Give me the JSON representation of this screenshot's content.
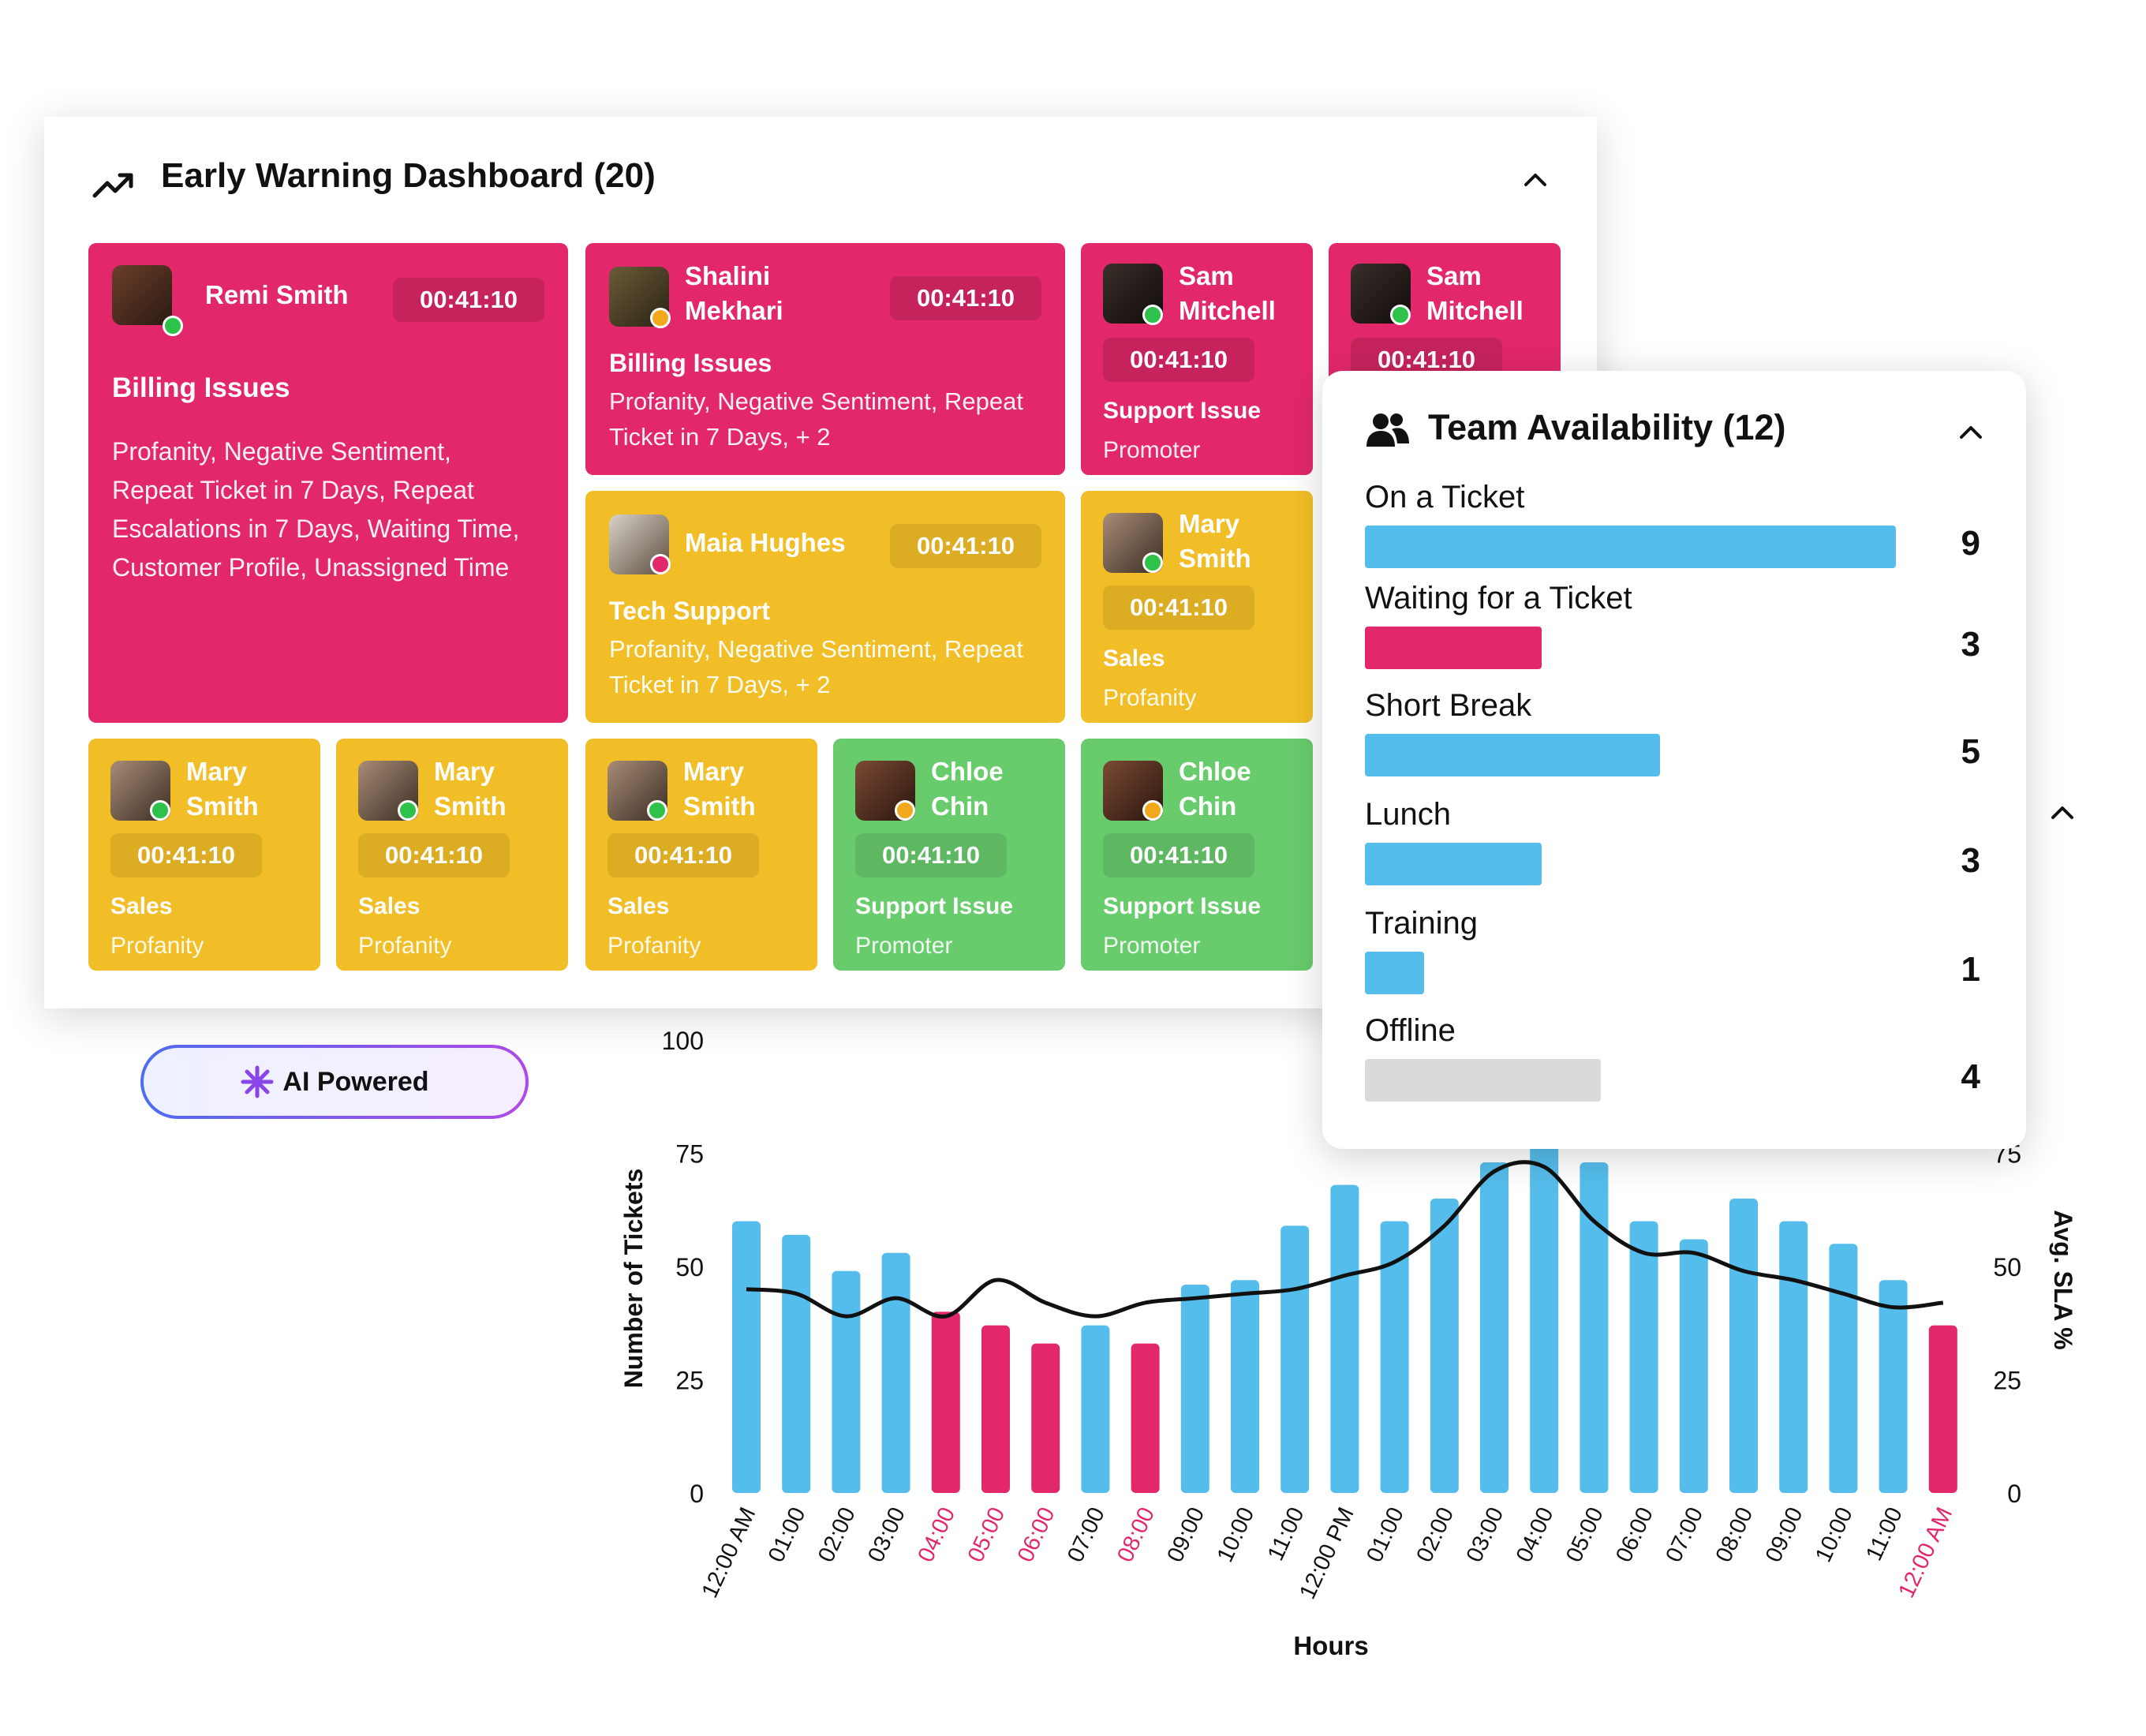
{
  "early_warning": {
    "title": "Early Warning Dashboard (20)",
    "cards": [
      {
        "name": "Remi Smith",
        "timer": "00:41:10",
        "category": "Billing Issues",
        "tags": "Profanity, Negative Sentiment, Repeat Ticket in 7 Days, Repeat Escalations in 7 Days, Waiting Time, Customer Profile, Unassigned Time",
        "status": "online",
        "color": "pink"
      },
      {
        "name": "Shalini Mekhari",
        "timer": "00:41:10",
        "category": "Billing Issues",
        "tags": "Profanity, Negative Sentiment, Repeat Ticket in 7 Days, + 2",
        "status": "away",
        "color": "pink"
      },
      {
        "name": "Sam Mitchell",
        "timer": "00:41:10",
        "category": "Support Issue",
        "tags": "Promoter",
        "status": "online",
        "color": "pink"
      },
      {
        "name": "Sam Mitchell",
        "timer": "00:41:10",
        "category": "",
        "tags": "",
        "status": "online",
        "color": "pink"
      },
      {
        "name": "Maia Hughes",
        "timer": "00:41:10",
        "category": "Tech Support",
        "tags": "Profanity, Negative Sentiment, Repeat Ticket in 7 Days, + 2",
        "status": "busy",
        "color": "yellow"
      },
      {
        "name": "Mary Smith",
        "timer": "00:41:10",
        "category": "Sales",
        "tags": "Profanity",
        "status": "online",
        "color": "yellow"
      },
      {
        "name": "Mary Smith",
        "timer": "00:41:10",
        "category": "Sales",
        "tags": "Profanity",
        "status": "online",
        "color": "yellow"
      },
      {
        "name": "Mary Smith",
        "timer": "00:41:10",
        "category": "Sales",
        "tags": "Profanity",
        "status": "online",
        "color": "yellow"
      },
      {
        "name": "Mary Smith",
        "timer": "00:41:10",
        "category": "Sales",
        "tags": "Profanity",
        "status": "online",
        "color": "yellow"
      },
      {
        "name": "Chloe Chin",
        "timer": "00:41:10",
        "category": "Support Issue",
        "tags": "Promoter",
        "status": "away",
        "color": "green"
      },
      {
        "name": "Chloe Chin",
        "timer": "00:41:10",
        "category": "Support Issue",
        "tags": "Promoter",
        "status": "away",
        "color": "green"
      }
    ]
  },
  "ai_badge": {
    "label": "AI Powered"
  },
  "team_availability": {
    "title": "Team Availability (12)",
    "total": 12,
    "items": [
      {
        "label": "On a Ticket",
        "count": 9,
        "color": "#55BDEB"
      },
      {
        "label": "Waiting for a Ticket",
        "count": 3,
        "color": "#E2286A"
      },
      {
        "label": "Short Break",
        "count": 5,
        "color": "#55BDEB"
      },
      {
        "label": "Lunch",
        "count": 3,
        "color": "#55BDEB"
      },
      {
        "label": "Training",
        "count": 1,
        "color": "#55BDEB"
      },
      {
        "label": "Offline",
        "count": 4,
        "color": "#DADADA"
      }
    ]
  },
  "colors": {
    "pink": "#E2286A",
    "yellow": "#F2BE27",
    "green": "#68CB6C",
    "blue": "#55BDEB",
    "online": "#2EC24A",
    "away": "#F2A81D",
    "busy": "#E2286A"
  },
  "chart_data": {
    "type": "bar",
    "xlabel": "Hours",
    "ylabel": "Number of Tickets",
    "y2label": "Avg. SLA %",
    "ylim": [
      0,
      100
    ],
    "yticks": [
      0,
      25,
      50,
      75,
      100
    ],
    "y2ticks": [
      0,
      25,
      50,
      75
    ],
    "categories": [
      "12:00 AM",
      "01:00",
      "02:00",
      "03:00",
      "04:00",
      "05:00",
      "06:00",
      "07:00",
      "08:00",
      "09:00",
      "10:00",
      "11:00",
      "12:00 PM",
      "01:00",
      "02:00",
      "03:00",
      "04:00",
      "05:00",
      "06:00",
      "07:00",
      "08:00",
      "09:00",
      "10:00",
      "11:00",
      "12:00 AM"
    ],
    "series": [
      {
        "values": [
          60,
          57,
          49,
          53,
          40,
          37,
          33,
          37,
          33,
          46,
          47,
          59,
          68,
          60,
          65,
          73,
          86,
          73,
          60,
          56,
          65,
          60,
          55,
          47,
          37
        ]
      },
      {
        "values": [
          45,
          44,
          39,
          43,
          39,
          47,
          42,
          39,
          42,
          43,
          44,
          45,
          48,
          51,
          59,
          71,
          72,
          60,
          53,
          53,
          49,
          47,
          44,
          41,
          42
        ]
      }
    ],
    "highlight": [
      false,
      false,
      false,
      false,
      true,
      true,
      true,
      false,
      true,
      false,
      false,
      false,
      false,
      false,
      false,
      false,
      false,
      false,
      false,
      false,
      false,
      false,
      false,
      false,
      true
    ]
  }
}
